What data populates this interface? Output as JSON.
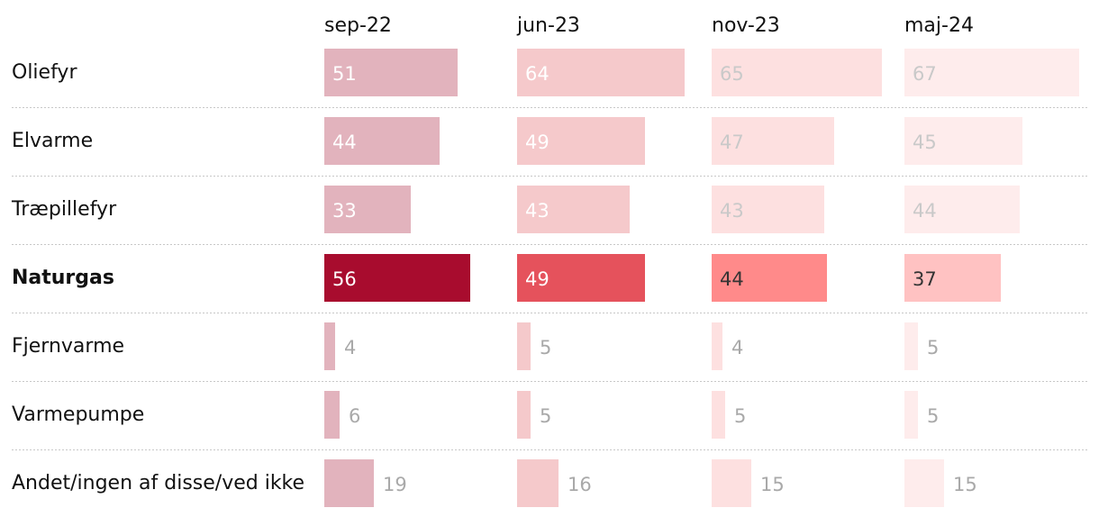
{
  "chart_data": {
    "type": "bar",
    "title": "",
    "columns": [
      "sep-22",
      "jun-23",
      "nov-23",
      "maj-24"
    ],
    "categories": [
      "Oliefyr",
      "Elvarme",
      "Træpillefyr",
      "Naturgas",
      "Fjernvarme",
      "Varmepumpe",
      "Andet/ingen af disse/ved ikke"
    ],
    "highlight": "Naturgas",
    "series": [
      {
        "name": "sep-22",
        "values": [
          51,
          44,
          33,
          56,
          4,
          6,
          19
        ]
      },
      {
        "name": "jun-23",
        "values": [
          64,
          49,
          43,
          49,
          5,
          5,
          16
        ]
      },
      {
        "name": "nov-23",
        "values": [
          65,
          47,
          43,
          44,
          4,
          5,
          15
        ]
      },
      {
        "name": "maj-24",
        "values": [
          67,
          45,
          44,
          37,
          5,
          5,
          15
        ]
      }
    ],
    "colors": {
      "muted_fill": [
        "#e2b3bd",
        "#f5c9cb",
        "#fde0e0",
        "#feecec"
      ],
      "muted_text_inside": [
        "#ffffff",
        "#ffffff",
        "#c9c9c9",
        "#c9c9c9"
      ],
      "highlight_fill": [
        "#a80c2e",
        "#e5525c",
        "#ff8a8a",
        "#ffc2c2"
      ],
      "highlight_text": [
        "#ffffff",
        "#ffffff",
        "#333333",
        "#333333"
      ],
      "outside_text": "#a9a9a9",
      "grid": "#c8c8c8"
    }
  }
}
